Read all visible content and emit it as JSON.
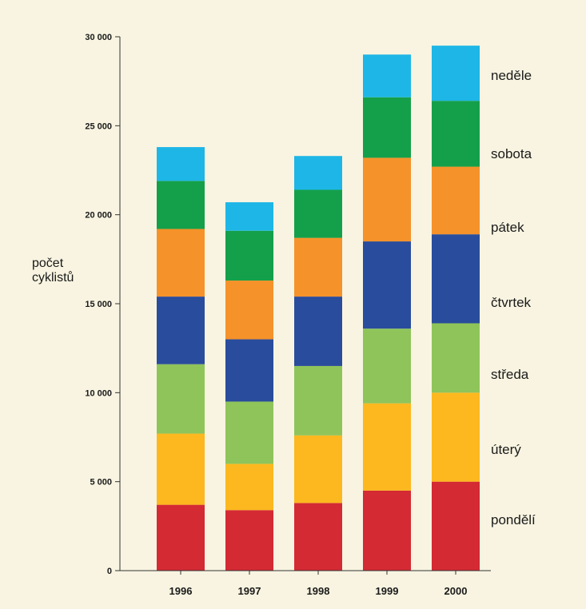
{
  "chart_data": {
    "type": "bar",
    "stacked": true,
    "title": "",
    "xlabel": "",
    "ylabel_lines": [
      "počet",
      "cyklistů"
    ],
    "ylim": [
      0,
      30000
    ],
    "yticks": [
      0,
      5000,
      10000,
      15000,
      20000,
      25000,
      30000
    ],
    "ytick_labels": [
      "0",
      "5 000",
      "10 000",
      "15 000",
      "20 000",
      "25 000",
      "30 000"
    ],
    "categories": [
      "1996",
      "1997",
      "1998",
      "1999",
      "2000"
    ],
    "series": [
      {
        "name": "pondělí",
        "color": "#d42a34",
        "values": [
          3700,
          3400,
          3800,
          4500,
          5000
        ]
      },
      {
        "name": "úterý",
        "color": "#fcb81e",
        "values": [
          4000,
          2600,
          3800,
          4900,
          5000
        ]
      },
      {
        "name": "středa",
        "color": "#8fc45a",
        "values": [
          3900,
          3500,
          3900,
          4200,
          3900
        ]
      },
      {
        "name": "čtvrtek",
        "color": "#2a4c9c",
        "values": [
          3800,
          3500,
          3900,
          4900,
          5000
        ]
      },
      {
        "name": "pátek",
        "color": "#f5922a",
        "values": [
          3800,
          3300,
          3300,
          4700,
          3800
        ]
      },
      {
        "name": "sobota",
        "color": "#14a04a",
        "values": [
          2700,
          2800,
          2700,
          3400,
          3700
        ]
      },
      {
        "name": "neděle",
        "color": "#1eb6e6",
        "values": [
          1900,
          1600,
          1900,
          2400,
          3100
        ]
      }
    ],
    "grid": false,
    "legend_position": "right"
  }
}
